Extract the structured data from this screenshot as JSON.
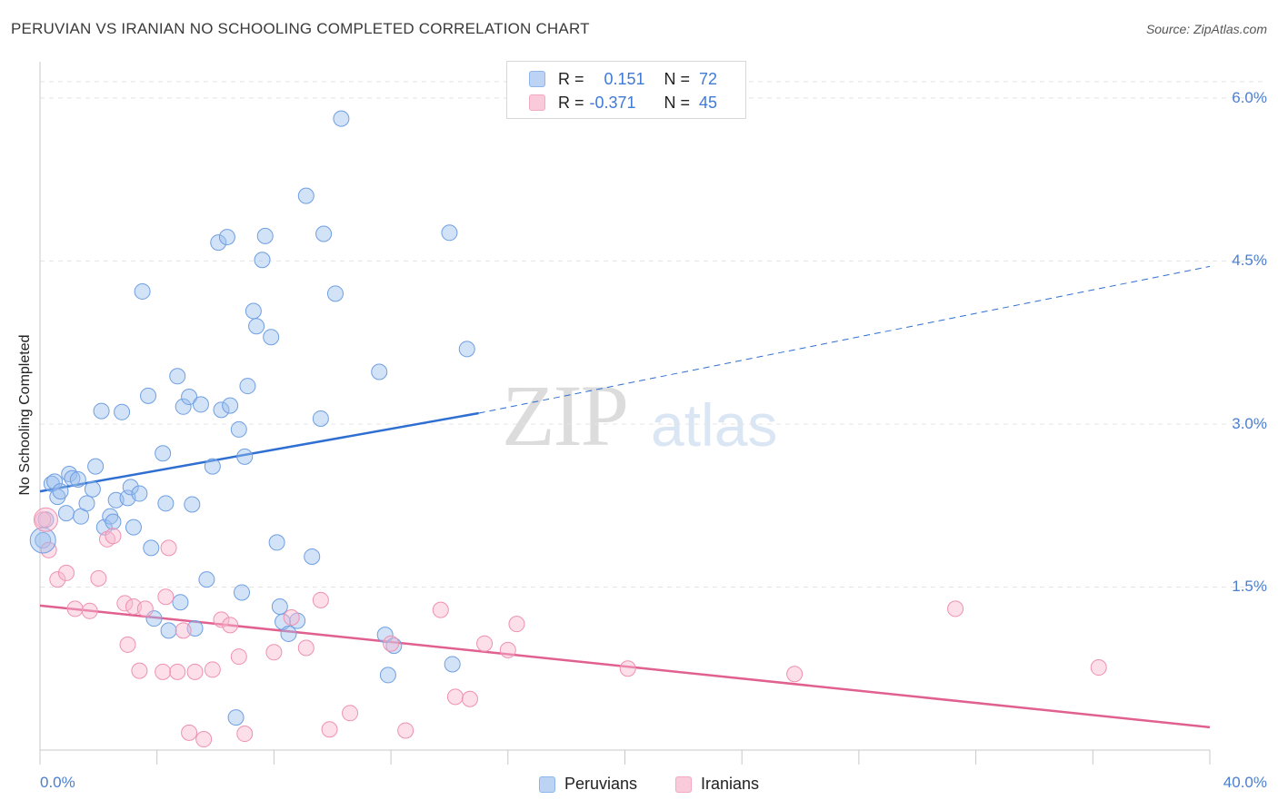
{
  "header": {
    "title": "PERUVIAN VS IRANIAN NO SCHOOLING COMPLETED CORRELATION CHART",
    "source": "Source: ZipAtlas.com"
  },
  "watermark": {
    "zip": "ZIP",
    "atlas": "atlas"
  },
  "stats": {
    "rows": [
      {
        "r_label": "R =",
        "r_value": "0.151",
        "n_label": "N =",
        "n_value": "72"
      },
      {
        "r_label": "R =",
        "r_value": "-0.371",
        "n_label": "N =",
        "n_value": "45"
      }
    ]
  },
  "legend": {
    "items": [
      "Peruvians",
      "Iranians"
    ]
  },
  "chart_data": {
    "type": "scatter",
    "title": "PERUVIAN VS IRANIAN NO SCHOOLING COMPLETED CORRELATION CHART",
    "xlabel": "",
    "ylabel": "No Schooling Completed",
    "xlim": [
      0,
      40
    ],
    "ylim": [
      0,
      6.3
    ],
    "x_tick_labels": [
      "0.0%",
      "40.0%"
    ],
    "y_ticks": [
      1.5,
      3.0,
      4.5,
      6.0
    ],
    "y_tick_labels": [
      "1.5%",
      "3.0%",
      "4.5%",
      "6.0%"
    ],
    "grid": true,
    "legend_position": "bottom-center",
    "colors": {
      "Peruvians": "#8fb6ec",
      "Iranians": "#f4a9c2",
      "peruvian_line": "#2e6fd1",
      "iranian_line": "#e06090"
    },
    "series": [
      {
        "name": "Peruvians",
        "trend": {
          "x0": 0,
          "y0": 2.38,
          "x1": 15,
          "y1": 3.1,
          "dashed_to_x": 40,
          "dashed_to_y": 4.45
        },
        "points": [
          [
            0.1,
            1.93
          ],
          [
            0.2,
            2.12
          ],
          [
            0.4,
            2.45
          ],
          [
            0.5,
            2.47
          ],
          [
            0.6,
            2.33
          ],
          [
            0.7,
            2.38
          ],
          [
            0.9,
            2.18
          ],
          [
            1.0,
            2.54
          ],
          [
            1.1,
            2.5
          ],
          [
            1.3,
            2.49
          ],
          [
            1.4,
            2.15
          ],
          [
            1.6,
            2.27
          ],
          [
            1.8,
            2.4
          ],
          [
            1.9,
            2.61
          ],
          [
            2.1,
            3.12
          ],
          [
            2.2,
            2.05
          ],
          [
            2.4,
            2.15
          ],
          [
            2.5,
            2.1
          ],
          [
            2.6,
            2.3
          ],
          [
            2.8,
            3.11
          ],
          [
            3.0,
            2.32
          ],
          [
            3.1,
            2.42
          ],
          [
            3.2,
            2.05
          ],
          [
            3.4,
            2.36
          ],
          [
            3.5,
            4.22
          ],
          [
            3.7,
            3.26
          ],
          [
            3.8,
            1.86
          ],
          [
            3.9,
            1.21
          ],
          [
            4.2,
            2.73
          ],
          [
            4.3,
            2.27
          ],
          [
            4.4,
            1.1
          ],
          [
            4.7,
            3.44
          ],
          [
            4.8,
            1.36
          ],
          [
            4.9,
            3.16
          ],
          [
            5.1,
            3.25
          ],
          [
            5.2,
            2.26
          ],
          [
            5.3,
            1.12
          ],
          [
            5.5,
            3.18
          ],
          [
            5.7,
            1.57
          ],
          [
            5.9,
            2.61
          ],
          [
            6.1,
            4.67
          ],
          [
            6.2,
            3.13
          ],
          [
            6.4,
            4.72
          ],
          [
            6.5,
            3.17
          ],
          [
            6.7,
            0.3
          ],
          [
            6.8,
            2.95
          ],
          [
            6.9,
            1.45
          ],
          [
            7.0,
            2.7
          ],
          [
            7.1,
            3.35
          ],
          [
            7.3,
            4.04
          ],
          [
            7.4,
            3.9
          ],
          [
            7.6,
            4.51
          ],
          [
            7.7,
            4.73
          ],
          [
            7.9,
            3.8
          ],
          [
            8.1,
            1.91
          ],
          [
            8.2,
            1.32
          ],
          [
            8.3,
            1.18
          ],
          [
            8.5,
            1.07
          ],
          [
            8.8,
            1.19
          ],
          [
            9.1,
            5.1
          ],
          [
            9.3,
            1.78
          ],
          [
            9.6,
            3.05
          ],
          [
            9.7,
            4.75
          ],
          [
            10.1,
            4.2
          ],
          [
            10.3,
            5.81
          ],
          [
            11.6,
            3.48
          ],
          [
            11.8,
            1.06
          ],
          [
            12.1,
            0.96
          ],
          [
            11.9,
            0.69
          ],
          [
            14.0,
            4.76
          ],
          [
            14.1,
            0.79
          ],
          [
            14.6,
            3.69
          ]
        ]
      },
      {
        "name": "Iranians",
        "trend": {
          "x0": 0,
          "y0": 1.33,
          "x1": 40,
          "y1": 0.21
        },
        "points": [
          [
            0.1,
            2.12
          ],
          [
            0.3,
            1.84
          ],
          [
            0.6,
            1.57
          ],
          [
            0.9,
            1.63
          ],
          [
            1.2,
            1.3
          ],
          [
            1.7,
            1.28
          ],
          [
            2.0,
            1.58
          ],
          [
            2.3,
            1.94
          ],
          [
            2.5,
            1.97
          ],
          [
            2.9,
            1.35
          ],
          [
            3.0,
            0.97
          ],
          [
            3.2,
            1.32
          ],
          [
            3.4,
            0.73
          ],
          [
            3.6,
            1.3
          ],
          [
            4.2,
            0.72
          ],
          [
            4.3,
            1.41
          ],
          [
            4.4,
            1.86
          ],
          [
            4.7,
            0.72
          ],
          [
            4.9,
            1.1
          ],
          [
            5.1,
            0.16
          ],
          [
            5.3,
            0.72
          ],
          [
            5.6,
            0.1
          ],
          [
            5.9,
            0.74
          ],
          [
            6.2,
            1.2
          ],
          [
            6.5,
            1.15
          ],
          [
            6.8,
            0.86
          ],
          [
            7.0,
            0.15
          ],
          [
            8.0,
            0.9
          ],
          [
            8.6,
            1.22
          ],
          [
            9.1,
            0.94
          ],
          [
            9.6,
            1.38
          ],
          [
            9.9,
            0.19
          ],
          [
            10.6,
            0.34
          ],
          [
            12.0,
            0.98
          ],
          [
            12.5,
            0.18
          ],
          [
            13.7,
            1.29
          ],
          [
            14.2,
            0.49
          ],
          [
            14.7,
            0.47
          ],
          [
            15.2,
            0.98
          ],
          [
            16.0,
            0.92
          ],
          [
            16.3,
            1.16
          ],
          [
            20.1,
            0.75
          ],
          [
            25.8,
            0.7
          ],
          [
            31.3,
            1.3
          ],
          [
            36.2,
            0.76
          ]
        ]
      }
    ]
  }
}
